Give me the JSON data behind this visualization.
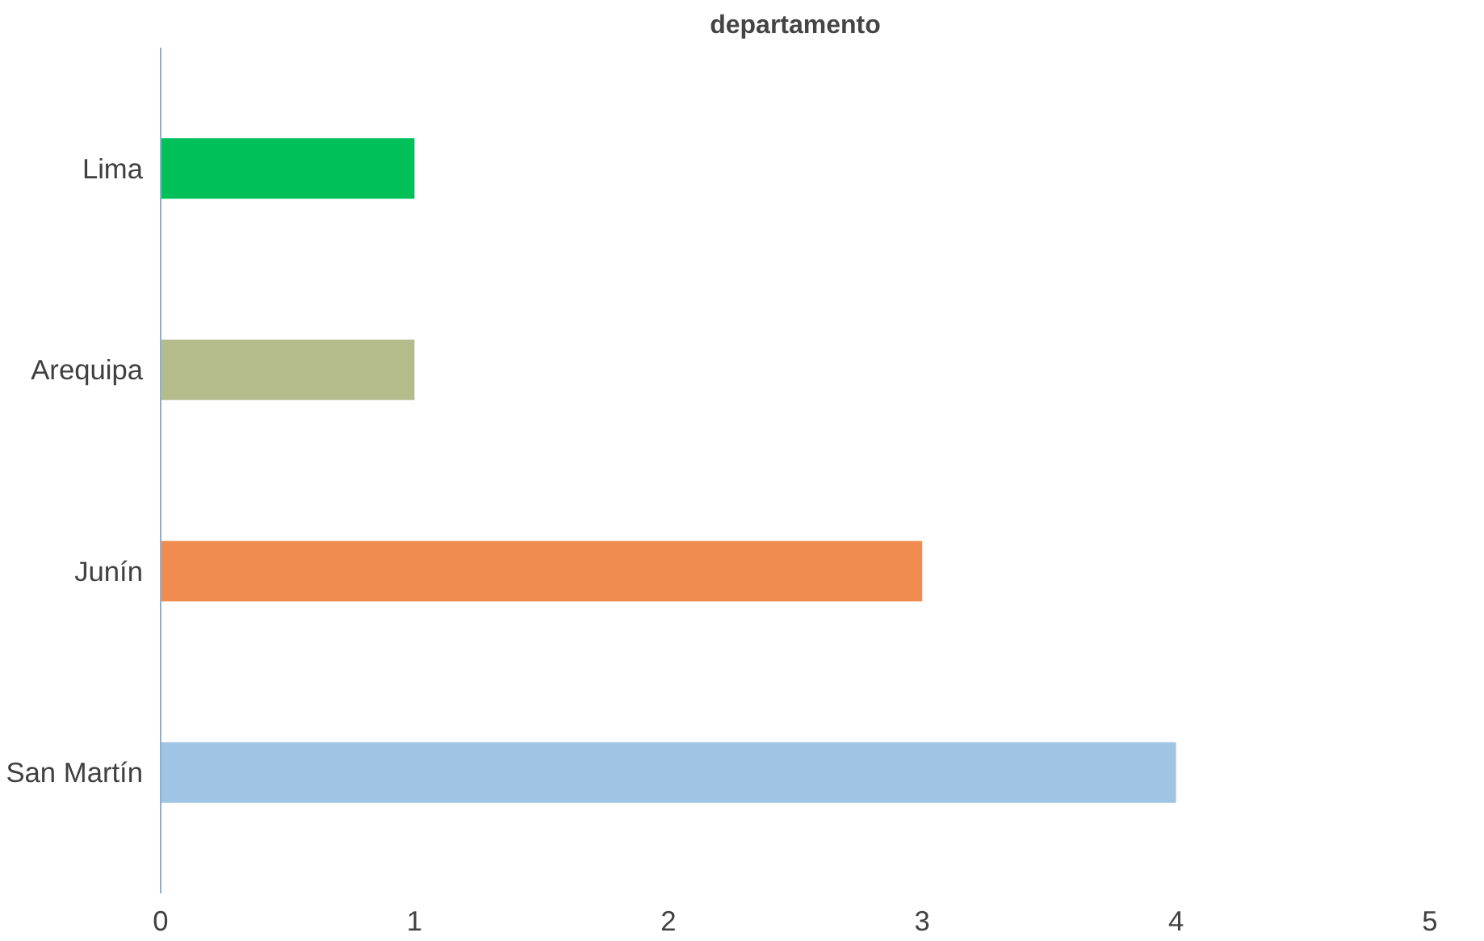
{
  "chart_data": {
    "type": "bar",
    "orientation": "horizontal",
    "title": "departamento",
    "categories": [
      "Lima",
      "Arequipa",
      "Junín",
      "San Martín"
    ],
    "values": [
      1,
      1,
      3,
      4
    ],
    "colors": [
      "#00c05a",
      "#b4bc8c",
      "#f08c50",
      "#9fc4e4"
    ],
    "xlim": [
      0,
      5
    ],
    "xticks": [
      0,
      1,
      2,
      3,
      4,
      5
    ],
    "grid": false
  }
}
